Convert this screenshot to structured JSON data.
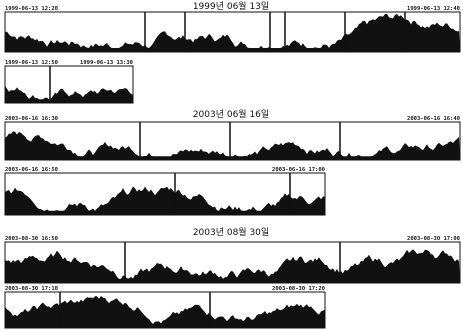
{
  "sections": [
    {
      "title": "1999년 06월 13일",
      "strips": [
        {
          "start": "1999-06-13 12:20",
          "end": "1999-06-13 12:40"
        },
        {
          "start": "1999-06-13 12:50",
          "end": "1999-06-13 13:30"
        }
      ]
    },
    {
      "title": "2003년 06월 16일",
      "strips": [
        {
          "start": "2003-06-16 16:30",
          "end": "2003-06-16 16:40"
        },
        {
          "start": "2003-06-16 16:50",
          "end": "2003-06-16 17:00"
        }
      ]
    },
    {
      "title": "2003년 08월 30일",
      "strips": [
        {
          "start": "2003-08-30 16:50",
          "end": "2003-08-30 17:00"
        },
        {
          "start": "2003-08-30 17:10",
          "end": "2003-08-30 17:20"
        }
      ]
    }
  ]
}
